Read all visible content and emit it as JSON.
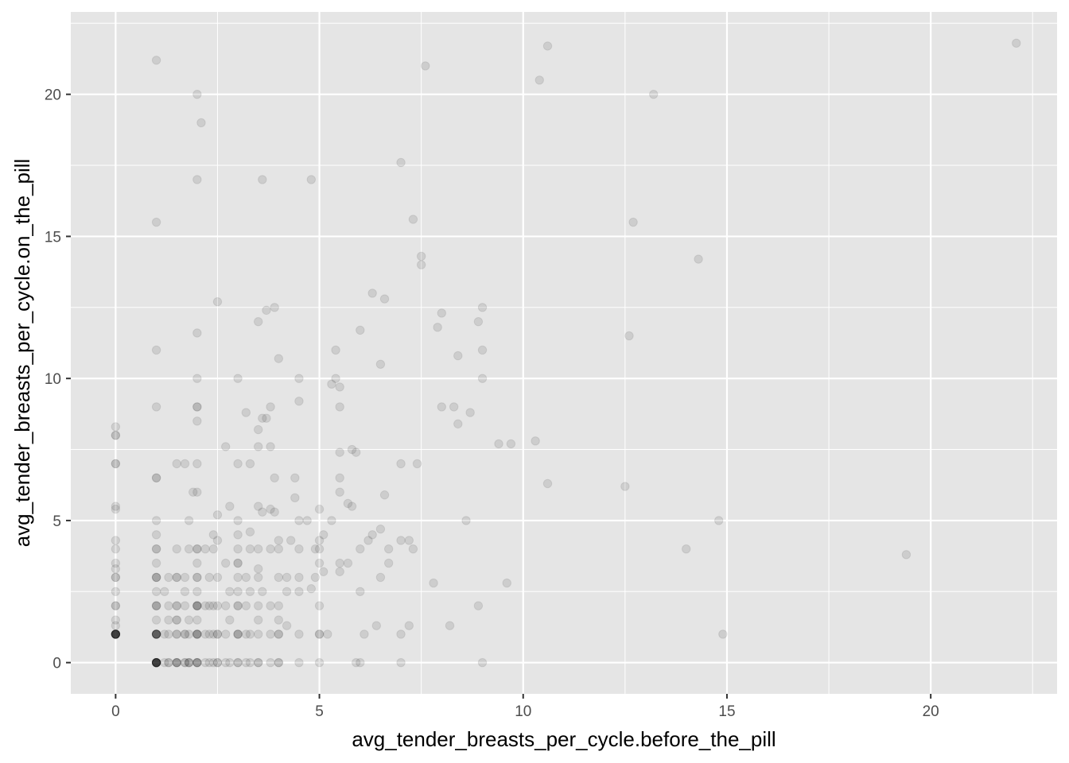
{
  "chart_data": {
    "type": "scatter",
    "xlabel": "avg_tender_breasts_per_cycle.before_the_pill",
    "ylabel": "avg_tender_breasts_per_cycle.on_the_pill",
    "xlim": [
      -1.1,
      23.1
    ],
    "ylim": [
      -1.1,
      22.9
    ],
    "x_ticks": [
      0,
      5,
      10,
      15,
      20
    ],
    "y_ticks": [
      0,
      5,
      10,
      15,
      20
    ],
    "grid": true,
    "point_alpha": 0.1,
    "colors": {
      "panel": "#e5e5e5",
      "grid": "#ffffff",
      "point": "#000000"
    },
    "points": [
      [
        0,
        1
      ],
      [
        0,
        1
      ],
      [
        0,
        1
      ],
      [
        0,
        1
      ],
      [
        0,
        1
      ],
      [
        0,
        1
      ],
      [
        0,
        1
      ],
      [
        0,
        1
      ],
      [
        0,
        1
      ],
      [
        0,
        1
      ],
      [
        0,
        1
      ],
      [
        0,
        1
      ],
      [
        0,
        1.3
      ],
      [
        0,
        1.5
      ],
      [
        0,
        2
      ],
      [
        0,
        2
      ],
      [
        0,
        2.5
      ],
      [
        0,
        3
      ],
      [
        0,
        3
      ],
      [
        0,
        3.3
      ],
      [
        0,
        3.5
      ],
      [
        0,
        4
      ],
      [
        0,
        4.3
      ],
      [
        0,
        5.4
      ],
      [
        0,
        5.5
      ],
      [
        0,
        7
      ],
      [
        0,
        7
      ],
      [
        0,
        8
      ],
      [
        0,
        8
      ],
      [
        0,
        8.3
      ],
      [
        1,
        0
      ],
      [
        1,
        0
      ],
      [
        1,
        0
      ],
      [
        1,
        0
      ],
      [
        1,
        0
      ],
      [
        1,
        0
      ],
      [
        1,
        0
      ],
      [
        1,
        0
      ],
      [
        1,
        0
      ],
      [
        1,
        0
      ],
      [
        1,
        0
      ],
      [
        1,
        0
      ],
      [
        1,
        1
      ],
      [
        1,
        1
      ],
      [
        1,
        1
      ],
      [
        1,
        1
      ],
      [
        1,
        1
      ],
      [
        1,
        1
      ],
      [
        1,
        1
      ],
      [
        1,
        1
      ],
      [
        1,
        1.5
      ],
      [
        1,
        2
      ],
      [
        1,
        2
      ],
      [
        1,
        2
      ],
      [
        1,
        2.5
      ],
      [
        1,
        3
      ],
      [
        1,
        3
      ],
      [
        1,
        3
      ],
      [
        1,
        3.5
      ],
      [
        1,
        4
      ],
      [
        1,
        4
      ],
      [
        1,
        4.5
      ],
      [
        1,
        5
      ],
      [
        1,
        6.5
      ],
      [
        1,
        6.5
      ],
      [
        1,
        9
      ],
      [
        1,
        11
      ],
      [
        1,
        15.5
      ],
      [
        1,
        21.2
      ],
      [
        1.2,
        0
      ],
      [
        1.2,
        1
      ],
      [
        1.2,
        2.5
      ],
      [
        1.3,
        0
      ],
      [
        1.3,
        0
      ],
      [
        1.3,
        1
      ],
      [
        1.3,
        1.5
      ],
      [
        1.3,
        2
      ],
      [
        1.3,
        3
      ],
      [
        1.5,
        0
      ],
      [
        1.5,
        0
      ],
      [
        1.5,
        0
      ],
      [
        1.5,
        0
      ],
      [
        1.5,
        1
      ],
      [
        1.5,
        1
      ],
      [
        1.5,
        1.5
      ],
      [
        1.5,
        1.5
      ],
      [
        1.5,
        2
      ],
      [
        1.5,
        2
      ],
      [
        1.5,
        3
      ],
      [
        1.5,
        3
      ],
      [
        1.5,
        4
      ],
      [
        1.5,
        7
      ],
      [
        1.7,
        0
      ],
      [
        1.7,
        0
      ],
      [
        1.7,
        1
      ],
      [
        1.7,
        1
      ],
      [
        1.7,
        2
      ],
      [
        1.7,
        2.5
      ],
      [
        1.7,
        3
      ],
      [
        1.7,
        7
      ],
      [
        1.8,
        0
      ],
      [
        1.8,
        0
      ],
      [
        1.8,
        0
      ],
      [
        1.8,
        1
      ],
      [
        1.8,
        1.5
      ],
      [
        1.8,
        4
      ],
      [
        1.8,
        5
      ],
      [
        2,
        0
      ],
      [
        2,
        0
      ],
      [
        2,
        0
      ],
      [
        2,
        0
      ],
      [
        2,
        1
      ],
      [
        2,
        1
      ],
      [
        2,
        1
      ],
      [
        2,
        1
      ],
      [
        2,
        1.5
      ],
      [
        2,
        2
      ],
      [
        2,
        2
      ],
      [
        2,
        2
      ],
      [
        2,
        2
      ],
      [
        2,
        2.5
      ],
      [
        2,
        3
      ],
      [
        2,
        3
      ],
      [
        2,
        3.5
      ],
      [
        2,
        4
      ],
      [
        2,
        4
      ],
      [
        1.9,
        6
      ],
      [
        2,
        6
      ],
      [
        2,
        7
      ],
      [
        2,
        8.5
      ],
      [
        2,
        9
      ],
      [
        2,
        9
      ],
      [
        2,
        10
      ],
      [
        2,
        11.6
      ],
      [
        2,
        17
      ],
      [
        2,
        20
      ],
      [
        2.1,
        19
      ],
      [
        2.2,
        0
      ],
      [
        2.2,
        1
      ],
      [
        2.2,
        2
      ],
      [
        2.2,
        4
      ],
      [
        2.3,
        0
      ],
      [
        2.3,
        1
      ],
      [
        2.3,
        2
      ],
      [
        2.3,
        3
      ],
      [
        2.4,
        0
      ],
      [
        2.4,
        1
      ],
      [
        2.4,
        2
      ],
      [
        2.4,
        4
      ],
      [
        2.4,
        4.5
      ],
      [
        2.5,
        0
      ],
      [
        2.5,
        0
      ],
      [
        2.5,
        1
      ],
      [
        2.5,
        1
      ],
      [
        2.5,
        2
      ],
      [
        2.5,
        3
      ],
      [
        2.5,
        4.3
      ],
      [
        2.5,
        5.2
      ],
      [
        2.5,
        12.7
      ],
      [
        2.7,
        0
      ],
      [
        2.7,
        1
      ],
      [
        2.7,
        2
      ],
      [
        2.7,
        3.5
      ],
      [
        2.7,
        7.6
      ],
      [
        2.8,
        0
      ],
      [
        2.8,
        1.5
      ],
      [
        2.8,
        2.5
      ],
      [
        2.8,
        5.5
      ],
      [
        3,
        0
      ],
      [
        3,
        0
      ],
      [
        3,
        1
      ],
      [
        3,
        1
      ],
      [
        3,
        1
      ],
      [
        3,
        2
      ],
      [
        3,
        2
      ],
      [
        3,
        2.5
      ],
      [
        3,
        3
      ],
      [
        3,
        3.5
      ],
      [
        3,
        3.5
      ],
      [
        3,
        4
      ],
      [
        3,
        4.5
      ],
      [
        3,
        5
      ],
      [
        3,
        7
      ],
      [
        3,
        10
      ],
      [
        3.2,
        0
      ],
      [
        3.2,
        1
      ],
      [
        3.2,
        2
      ],
      [
        3.2,
        3
      ],
      [
        3.2,
        8.8
      ],
      [
        3.3,
        0
      ],
      [
        3.3,
        1
      ],
      [
        3.3,
        2.5
      ],
      [
        3.3,
        4
      ],
      [
        3.3,
        4.6
      ],
      [
        3.3,
        7
      ],
      [
        3.5,
        0
      ],
      [
        3.5,
        0
      ],
      [
        3.5,
        1
      ],
      [
        3.5,
        1.5
      ],
      [
        3.5,
        2
      ],
      [
        3.5,
        3
      ],
      [
        3.5,
        3.3
      ],
      [
        3.5,
        4
      ],
      [
        3.5,
        5.5
      ],
      [
        3.5,
        7.6
      ],
      [
        3.5,
        8.2
      ],
      [
        3.5,
        12
      ],
      [
        3.6,
        2.5
      ],
      [
        3.6,
        5.3
      ],
      [
        3.6,
        8.6
      ],
      [
        3.6,
        17
      ],
      [
        3.7,
        8.6
      ],
      [
        3.7,
        12.4
      ],
      [
        3.8,
        0
      ],
      [
        3.8,
        1
      ],
      [
        3.8,
        2
      ],
      [
        3.8,
        4
      ],
      [
        3.8,
        5.4
      ],
      [
        3.8,
        7.6
      ],
      [
        3.8,
        9
      ],
      [
        3.9,
        5.3
      ],
      [
        3.9,
        6.5
      ],
      [
        3.9,
        12.5
      ],
      [
        4,
        0
      ],
      [
        4,
        0
      ],
      [
        4,
        1
      ],
      [
        4,
        1
      ],
      [
        4,
        1.5
      ],
      [
        4,
        2
      ],
      [
        4,
        3
      ],
      [
        4,
        4
      ],
      [
        4,
        4.3
      ],
      [
        4,
        10.7
      ],
      [
        4.2,
        1.3
      ],
      [
        4.2,
        2.5
      ],
      [
        4.2,
        3
      ],
      [
        4.3,
        4.3
      ],
      [
        4.4,
        5.8
      ],
      [
        4.4,
        6.5
      ],
      [
        4.5,
        0
      ],
      [
        4.5,
        1
      ],
      [
        4.5,
        2.5
      ],
      [
        4.5,
        3
      ],
      [
        4.5,
        4
      ],
      [
        4.5,
        5
      ],
      [
        4.5,
        9.2
      ],
      [
        4.5,
        10
      ],
      [
        4.7,
        5
      ],
      [
        4.8,
        17
      ],
      [
        4.8,
        2.6
      ],
      [
        4.9,
        3
      ],
      [
        4.9,
        4
      ],
      [
        5,
        0
      ],
      [
        5,
        1
      ],
      [
        5,
        2
      ],
      [
        5,
        3.5
      ],
      [
        5,
        4
      ],
      [
        5,
        4.3
      ],
      [
        5,
        5.4
      ],
      [
        5,
        1
      ],
      [
        5.1,
        4.5
      ],
      [
        5.1,
        3.2
      ],
      [
        5.2,
        1
      ],
      [
        5.3,
        5
      ],
      [
        5.3,
        9.8
      ],
      [
        5.4,
        10
      ],
      [
        5.4,
        11
      ],
      [
        5.5,
        3.2
      ],
      [
        5.5,
        3.5
      ],
      [
        5.5,
        6
      ],
      [
        5.5,
        6.5
      ],
      [
        5.5,
        7.4
      ],
      [
        5.5,
        9
      ],
      [
        5.5,
        9.7
      ],
      [
        5.7,
        3.5
      ],
      [
        5.7,
        5.6
      ],
      [
        5.8,
        5.5
      ],
      [
        5.8,
        7.5
      ],
      [
        5.9,
        7.4
      ],
      [
        5.9,
        0
      ],
      [
        6,
        0
      ],
      [
        6,
        2.5
      ],
      [
        6,
        4
      ],
      [
        6,
        11.7
      ],
      [
        6.1,
        1
      ],
      [
        6.2,
        4.3
      ],
      [
        6.3,
        4.5
      ],
      [
        6.3,
        13
      ],
      [
        6.4,
        1.3
      ],
      [
        6.5,
        3
      ],
      [
        6.5,
        4.7
      ],
      [
        6.5,
        10.5
      ],
      [
        6.6,
        12.8
      ],
      [
        6.6,
        5.9
      ],
      [
        6.7,
        3.5
      ],
      [
        6.7,
        4
      ],
      [
        7,
        0
      ],
      [
        7,
        1
      ],
      [
        7,
        4.3
      ],
      [
        7,
        7
      ],
      [
        7,
        17.6
      ],
      [
        7.2,
        4.3
      ],
      [
        7.2,
        1.3
      ],
      [
        7.3,
        15.6
      ],
      [
        7.3,
        4
      ],
      [
        7.4,
        7
      ],
      [
        7.5,
        14
      ],
      [
        7.5,
        14.3
      ],
      [
        7.6,
        21
      ],
      [
        7.8,
        2.8
      ],
      [
        7.9,
        11.8
      ],
      [
        8,
        9
      ],
      [
        8,
        12.3
      ],
      [
        8.2,
        1.3
      ],
      [
        8.3,
        9
      ],
      [
        8.4,
        8.4
      ],
      [
        8.4,
        10.8
      ],
      [
        8.6,
        5
      ],
      [
        8.7,
        8.8
      ],
      [
        8.9,
        12
      ],
      [
        8.9,
        2
      ],
      [
        9,
        0
      ],
      [
        9,
        10
      ],
      [
        9,
        11
      ],
      [
        9,
        12.5
      ],
      [
        9.4,
        7.7
      ],
      [
        9.6,
        2.8
      ],
      [
        9.7,
        7.7
      ],
      [
        10.3,
        7.8
      ],
      [
        10.4,
        20.5
      ],
      [
        10.6,
        6.3
      ],
      [
        10.6,
        21.7
      ],
      [
        12.5,
        6.2
      ],
      [
        12.6,
        11.5
      ],
      [
        12.7,
        15.5
      ],
      [
        13.2,
        20
      ],
      [
        14,
        4
      ],
      [
        14.3,
        14.2
      ],
      [
        14.8,
        5
      ],
      [
        14.9,
        1
      ],
      [
        19.4,
        3.8
      ],
      [
        22.1,
        21.8
      ]
    ]
  }
}
